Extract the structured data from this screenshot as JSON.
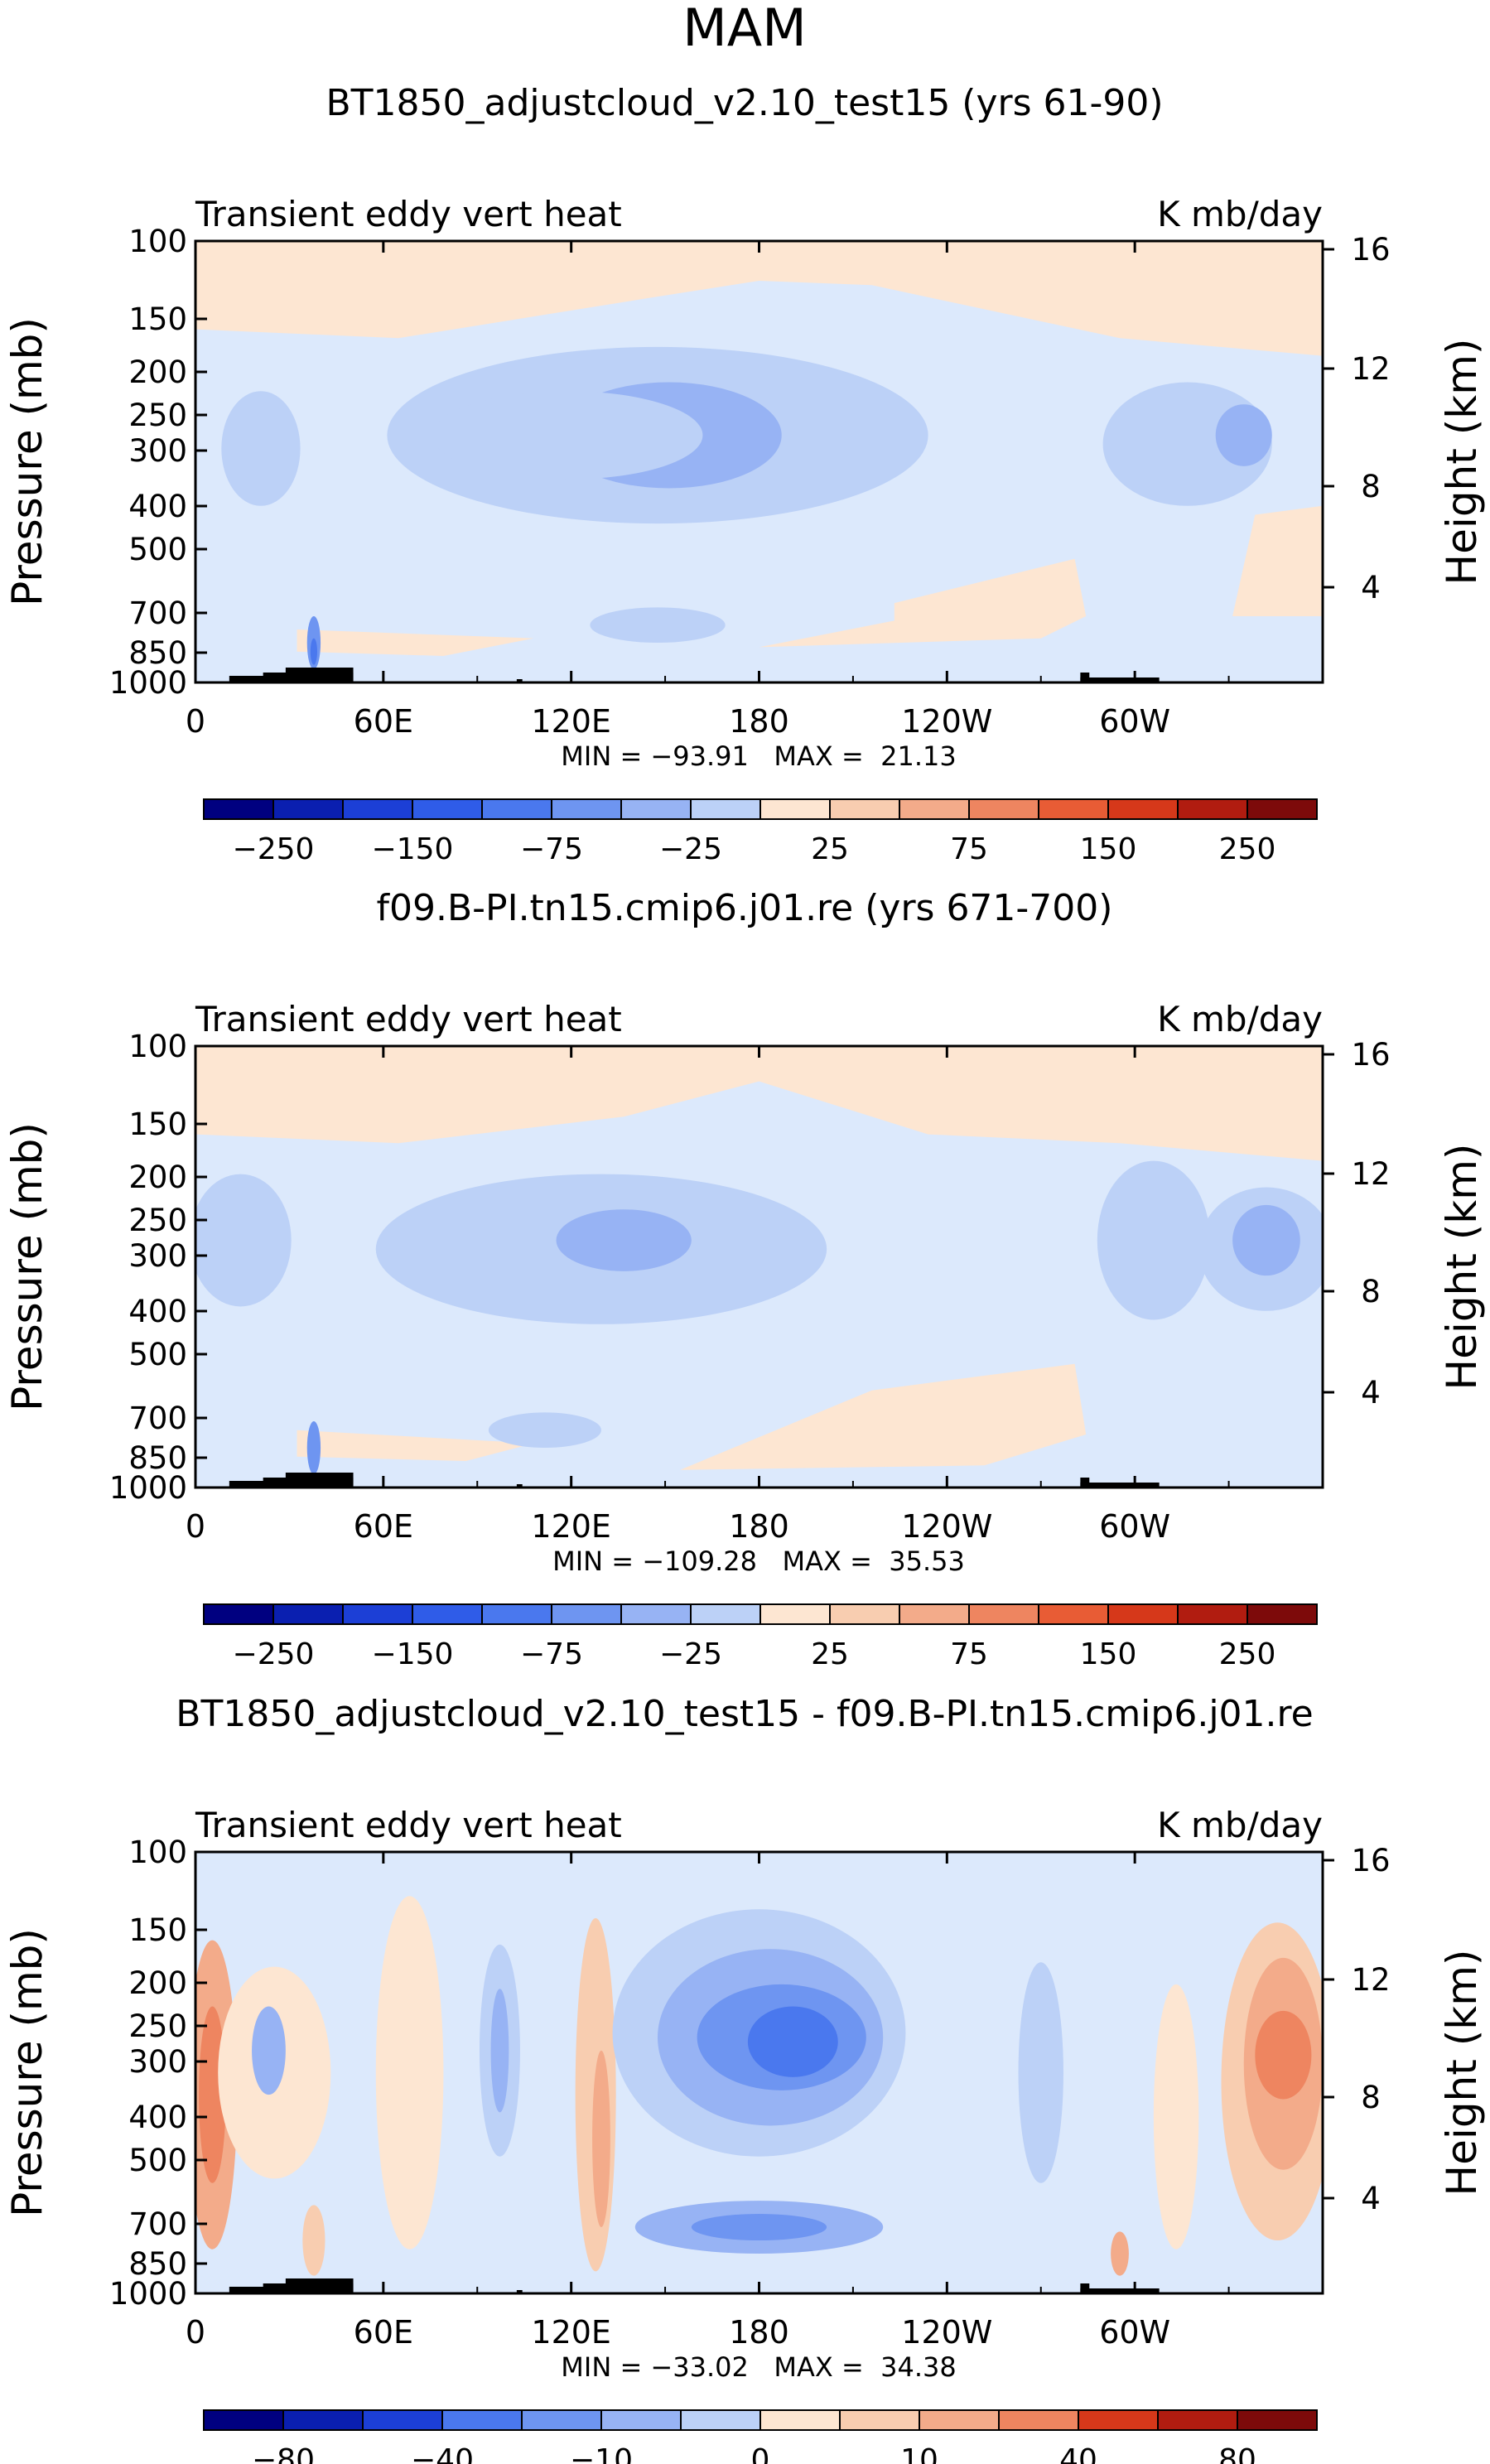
{
  "page": {
    "title": "MAM"
  },
  "chart_data": [
    {
      "type": "heatmap",
      "title": "BT1850_adjustcloud_v2.10_test15 (yrs 61-90)",
      "variable_label": "Transient eddy vert heat",
      "units_label": "K mb/day",
      "stats_text": "MIN = −93.91   MAX =  21.13",
      "min": -93.91,
      "max": 21.13,
      "xlabel": "",
      "ylabel": "Pressure (mb)",
      "y2label": "Height (km)",
      "x_ticks": [
        "0",
        "60E",
        "120E",
        "180",
        "120W",
        "60W"
      ],
      "x_range_deg": [
        0,
        360
      ],
      "y_ticks": [
        "100",
        "150",
        "200",
        "250",
        "300",
        "400",
        "500",
        "700",
        "850",
        "1000"
      ],
      "y_range_mb": [
        1000,
        100
      ],
      "y2_ticks": [
        "16",
        "12",
        "8",
        "4"
      ],
      "colorbar_labels": [
        "−250",
        "−150",
        "−75",
        "−25",
        "25",
        "75",
        "150",
        "250"
      ],
      "colorbar_levels": [
        -250,
        -200,
        -150,
        -100,
        -75,
        -50,
        -25,
        0,
        25,
        50,
        75,
        100,
        150,
        200,
        250
      ]
    },
    {
      "type": "heatmap",
      "title": "f09.B-PI.tn15.cmip6.j01.re (yrs 671-700)",
      "variable_label": "Transient eddy vert heat",
      "units_label": "K mb/day",
      "stats_text": "MIN = −109.28   MAX =  35.53",
      "min": -109.28,
      "max": 35.53,
      "xlabel": "",
      "ylabel": "Pressure (mb)",
      "y2label": "Height (km)",
      "x_ticks": [
        "0",
        "60E",
        "120E",
        "180",
        "120W",
        "60W"
      ],
      "x_range_deg": [
        0,
        360
      ],
      "y_ticks": [
        "100",
        "150",
        "200",
        "250",
        "300",
        "400",
        "500",
        "700",
        "850",
        "1000"
      ],
      "y_range_mb": [
        1000,
        100
      ],
      "y2_ticks": [
        "16",
        "12",
        "8",
        "4"
      ],
      "colorbar_labels": [
        "−250",
        "−150",
        "−75",
        "−25",
        "25",
        "75",
        "150",
        "250"
      ],
      "colorbar_levels": [
        -250,
        -200,
        -150,
        -100,
        -75,
        -50,
        -25,
        0,
        25,
        50,
        75,
        100,
        150,
        200,
        250
      ]
    },
    {
      "type": "heatmap",
      "title": "BT1850_adjustcloud_v2.10_test15 - f09.B-PI.tn15.cmip6.j01.re",
      "variable_label": "Transient eddy vert heat",
      "units_label": "K mb/day",
      "stats_text": "MIN = −33.02   MAX =  34.38",
      "min": -33.02,
      "max": 34.38,
      "xlabel": "",
      "ylabel": "Pressure (mb)",
      "y2label": "Height (km)",
      "x_ticks": [
        "0",
        "60E",
        "120E",
        "180",
        "120W",
        "60W"
      ],
      "x_range_deg": [
        0,
        360
      ],
      "y_ticks": [
        "100",
        "150",
        "200",
        "250",
        "300",
        "400",
        "500",
        "700",
        "850",
        "1000"
      ],
      "y_range_mb": [
        1000,
        100
      ],
      "y2_ticks": [
        "16",
        "12",
        "8",
        "4"
      ],
      "colorbar_labels": [
        "−80",
        "−40",
        "−10",
        "0",
        "10",
        "40",
        "80"
      ],
      "colorbar_levels": [
        -80,
        -60,
        -40,
        -20,
        -10,
        -5,
        0,
        5,
        10,
        20,
        40,
        60,
        80
      ]
    }
  ],
  "colors": {
    "palette": [
      "#000080",
      "#0a1fb0",
      "#1c3fd6",
      "#2f5ce8",
      "#4a78ee",
      "#6e95f1",
      "#97b3f4",
      "#bcd1f7",
      "#dce9fc",
      "#fde6d2",
      "#f8cdb0",
      "#f3ab8a",
      "#ee8560",
      "#e85c35",
      "#d6381a",
      "#b11c10",
      "#7d0a0a"
    ],
    "terrain": "#000000"
  }
}
